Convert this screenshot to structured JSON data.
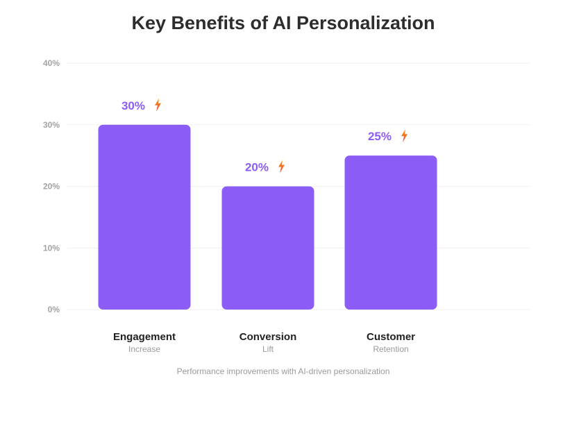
{
  "chart_data": {
    "type": "bar",
    "title": "Key Benefits of AI Personalization",
    "caption": "Performance improvements with AI-driven personalization",
    "categories": [
      {
        "main": "Engagement",
        "sub": "Increase"
      },
      {
        "main": "Conversion",
        "sub": "Lift"
      },
      {
        "main": "Customer",
        "sub": "Retention"
      }
    ],
    "values": [
      30,
      20,
      25
    ],
    "value_labels": [
      "30%",
      "20%",
      "25%"
    ],
    "ylim": [
      0,
      40
    ],
    "yticks": [
      0,
      10,
      20,
      30,
      40
    ],
    "ytick_labels": [
      "0%",
      "10%",
      "20%",
      "30%",
      "40%"
    ],
    "grid": true,
    "icon": "lightning-bolt-icon",
    "colors": {
      "bar": "#8b5cf6",
      "label": "#8b5cf6",
      "bolt_top": "#f59e0b",
      "bolt_bottom": "#ef4444",
      "grid": "#efefef"
    }
  }
}
